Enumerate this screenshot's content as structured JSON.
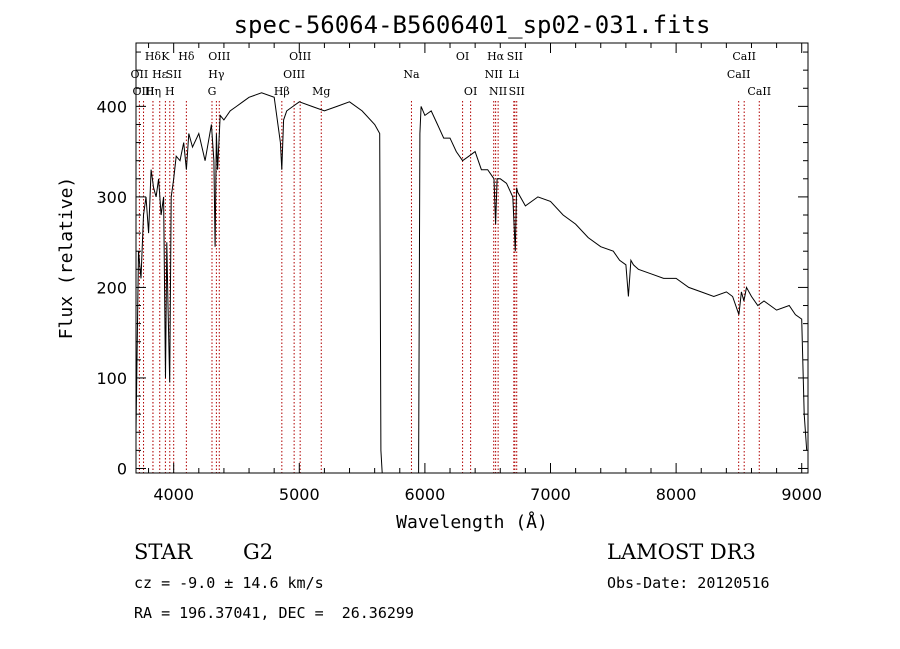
{
  "chart_data": {
    "type": "line",
    "title": "spec-56064-B5606401_sp02-031.fits",
    "xlabel": "Wavelength (Å)",
    "ylabel": "Flux (relative)",
    "xlim": [
      3700,
      9050
    ],
    "ylim": [
      -5,
      470
    ],
    "xticks": [
      4000,
      5000,
      6000,
      7000,
      8000,
      9000
    ],
    "yticks": [
      0,
      100,
      200,
      300,
      400
    ],
    "series": [
      {
        "name": "flux",
        "x": [
          3700,
          3720,
          3740,
          3760,
          3780,
          3800,
          3820,
          3840,
          3860,
          3880,
          3900,
          3920,
          3935,
          3945,
          3955,
          3968,
          3980,
          4000,
          4020,
          4050,
          4080,
          4101,
          4120,
          4150,
          4200,
          4250,
          4300,
          4320,
          4330,
          4340,
          4350,
          4370,
          4400,
          4450,
          4500,
          4550,
          4600,
          4700,
          4800,
          4850,
          4861,
          4875,
          4900,
          4950,
          5000,
          5100,
          5200,
          5300,
          5400,
          5500,
          5600,
          5640,
          5650,
          5660,
          5950,
          5960,
          5970,
          6000,
          6050,
          6100,
          6150,
          6200,
          6250,
          6300,
          6350,
          6400,
          6450,
          6500,
          6550,
          6563,
          6575,
          6600,
          6650,
          6700,
          6720,
          6730,
          6740,
          6800,
          6900,
          7000,
          7100,
          7200,
          7300,
          7400,
          7500,
          7550,
          7600,
          7620,
          7640,
          7660,
          7700,
          7800,
          7900,
          8000,
          8100,
          8200,
          8300,
          8400,
          8450,
          8500,
          8520,
          8540,
          8560,
          8600,
          8650,
          8700,
          8800,
          8900,
          8950,
          9000,
          9020,
          9040
        ],
        "y": [
          40,
          240,
          210,
          280,
          300,
          260,
          330,
          310,
          300,
          320,
          280,
          300,
          100,
          250,
          180,
          95,
          300,
          320,
          345,
          340,
          360,
          330,
          370,
          355,
          370,
          340,
          380,
          340,
          245,
          370,
          330,
          390,
          385,
          395,
          400,
          405,
          410,
          415,
          410,
          360,
          330,
          385,
          395,
          400,
          405,
          400,
          395,
          400,
          405,
          395,
          380,
          370,
          20,
          -5,
          -5,
          370,
          400,
          390,
          395,
          380,
          365,
          365,
          350,
          340,
          345,
          350,
          330,
          330,
          320,
          270,
          320,
          320,
          315,
          300,
          240,
          310,
          305,
          290,
          300,
          295,
          280,
          270,
          255,
          245,
          240,
          230,
          225,
          190,
          230,
          225,
          220,
          215,
          210,
          210,
          200,
          195,
          190,
          195,
          190,
          170,
          195,
          185,
          200,
          190,
          180,
          185,
          175,
          180,
          170,
          165,
          60,
          20
        ]
      }
    ],
    "lines": [
      {
        "name": "Hδ",
        "wl": 3835,
        "row": 0
      },
      {
        "name": "OII",
        "wl": 3727,
        "row": 1
      },
      {
        "name": "OIII",
        "wl": 3760,
        "row": 2
      },
      {
        "name": "Hε",
        "wl": 3889,
        "row": 1
      },
      {
        "name": "Hη",
        "wl": 3835,
        "row": 2
      },
      {
        "name": "K",
        "wl": 3934,
        "row": 0
      },
      {
        "name": "SII",
        "wl": 4000,
        "row": 1
      },
      {
        "name": "H",
        "wl": 3969,
        "row": 2
      },
      {
        "name": "Hδ",
        "wl": 4101,
        "row": 0
      },
      {
        "name": "OIII",
        "wl": 4363,
        "row": 0
      },
      {
        "name": "Hγ",
        "wl": 4340,
        "row": 1
      },
      {
        "name": "G",
        "wl": 4305,
        "row": 2
      },
      {
        "name": "OIII",
        "wl": 5007,
        "row": 0
      },
      {
        "name": "OIII",
        "wl": 4959,
        "row": 1
      },
      {
        "name": "Hβ",
        "wl": 4861,
        "row": 2
      },
      {
        "name": "Mg",
        "wl": 5175,
        "row": 2
      },
      {
        "name": "Na",
        "wl": 5893,
        "row": 1
      },
      {
        "name": "OI",
        "wl": 6300,
        "row": 0
      },
      {
        "name": "OI",
        "wl": 6364,
        "row": 2
      },
      {
        "name": "Hα",
        "wl": 6563,
        "row": 0
      },
      {
        "name": "SII",
        "wl": 6716,
        "row": 0
      },
      {
        "name": "NII",
        "wl": 6548,
        "row": 1
      },
      {
        "name": "Li",
        "wl": 6708,
        "row": 1
      },
      {
        "name": "NII",
        "wl": 6583,
        "row": 2
      },
      {
        "name": "SII",
        "wl": 6731,
        "row": 2
      },
      {
        "name": "CaII",
        "wl": 8542,
        "row": 0
      },
      {
        "name": "CaII",
        "wl": 8498,
        "row": 1
      },
      {
        "name": "CaII",
        "wl": 8662,
        "row": 2
      }
    ]
  },
  "info": {
    "class": "STAR",
    "subclass": "G2",
    "survey": "LAMOST DR3",
    "cz": "cz = -9.0 ± 14.6 km/s",
    "obs_date": "Obs-Date: 20120516",
    "radec": "RA = 196.37041, DEC =  26.36299"
  }
}
